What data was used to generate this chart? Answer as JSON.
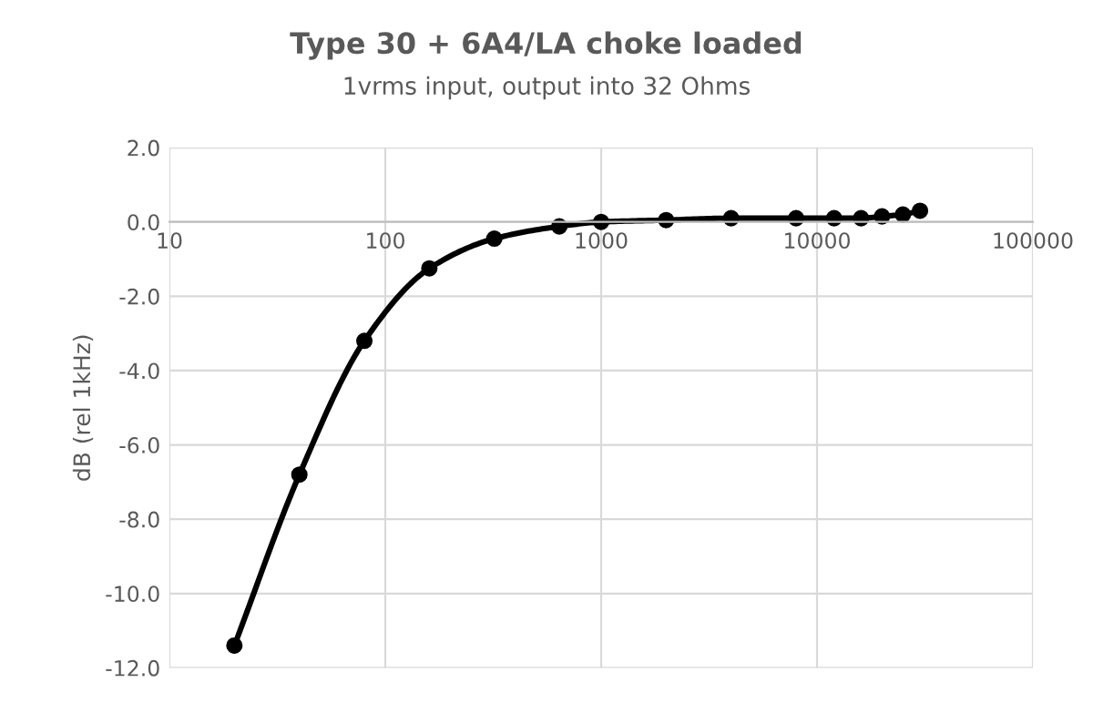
{
  "chart_data": {
    "type": "line",
    "title": "Type 30 + 6A4/LA choke loaded",
    "subtitle": "1vrms input, output into 32 Ohms",
    "ylabel": "dB (rel 1kHz)",
    "series": [
      {
        "color": "#000000",
        "x": [
          20,
          40,
          80,
          160,
          320,
          640,
          1000,
          2000,
          4000,
          8000,
          12000,
          16000,
          20000,
          25000,
          30000
        ],
        "values": [
          -11.4,
          -6.8,
          -3.2,
          -1.25,
          -0.45,
          -0.12,
          0.0,
          0.05,
          0.1,
          0.1,
          0.1,
          0.1,
          0.15,
          0.2,
          0.3
        ]
      }
    ],
    "log": "x",
    "xlim": [
      10,
      100000
    ],
    "xticks": [
      10,
      100,
      1000,
      10000,
      100000
    ],
    "ylim": [
      -12,
      2
    ],
    "yticks": [
      {
        "value": -12,
        "label": "-12.0"
      },
      {
        "value": -10,
        "label": "-10.0"
      },
      {
        "value": -8,
        "label": "-8.0"
      },
      {
        "value": -6,
        "label": "-6.0"
      },
      {
        "value": -4,
        "label": "-4.0"
      },
      {
        "value": -2,
        "label": "-2.0"
      },
      {
        "value": 0,
        "label": "0.0"
      },
      {
        "value": 2,
        "label": "2.0"
      }
    ],
    "grid": true,
    "marker": "circle",
    "line_style": "solid",
    "legend": false
  }
}
